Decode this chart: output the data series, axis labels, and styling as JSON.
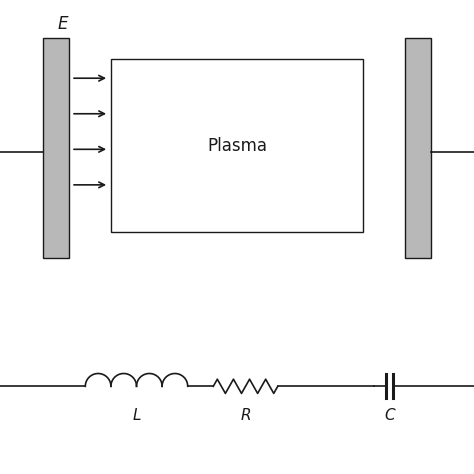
{
  "background_color": "#ffffff",
  "line_color": "#1a1a1a",
  "plate_color": "#b8b8b8",
  "plasma_box_color": "#ffffff",
  "plasma_box_edge": "#1a1a1a",
  "figsize": [
    4.74,
    4.74
  ],
  "dpi": 100,
  "E_label": "E",
  "plasma_label": "Plasma",
  "L_label": "L",
  "R_label": "R",
  "C_label": "C",
  "label_fontsize": 11,
  "plate_fontsize": 12
}
